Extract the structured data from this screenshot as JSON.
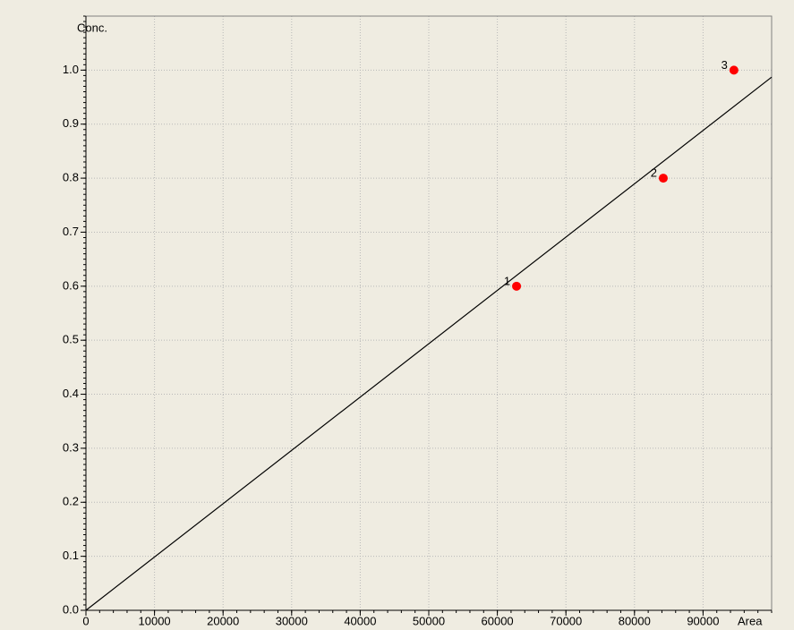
{
  "chart_data": {
    "type": "scatter",
    "y_label": "Conc.",
    "x_label": "Area",
    "xlim": [
      0,
      100000
    ],
    "ylim": [
      0,
      1.1
    ],
    "xticks": [
      0,
      10000,
      20000,
      30000,
      40000,
      50000,
      60000,
      70000,
      80000,
      90000
    ],
    "yticks": [
      {
        "value": 0,
        "label": "0.0"
      },
      0.1,
      0.2,
      0.3,
      0.4,
      0.5,
      0.6,
      0.7,
      0.8,
      0.9,
      {
        "value": 1,
        "label": "1.0"
      }
    ],
    "grid": true,
    "points": {
      "x": [
        62800,
        84200,
        94500
      ],
      "values": [
        0.6,
        0.8,
        1.0
      ],
      "labels": [
        "1",
        "2",
        "3"
      ],
      "color": "#ff0000"
    },
    "fit_line": {
      "x": [
        0,
        100000
      ],
      "values": [
        0,
        0.987
      ],
      "color": "#000000"
    }
  }
}
